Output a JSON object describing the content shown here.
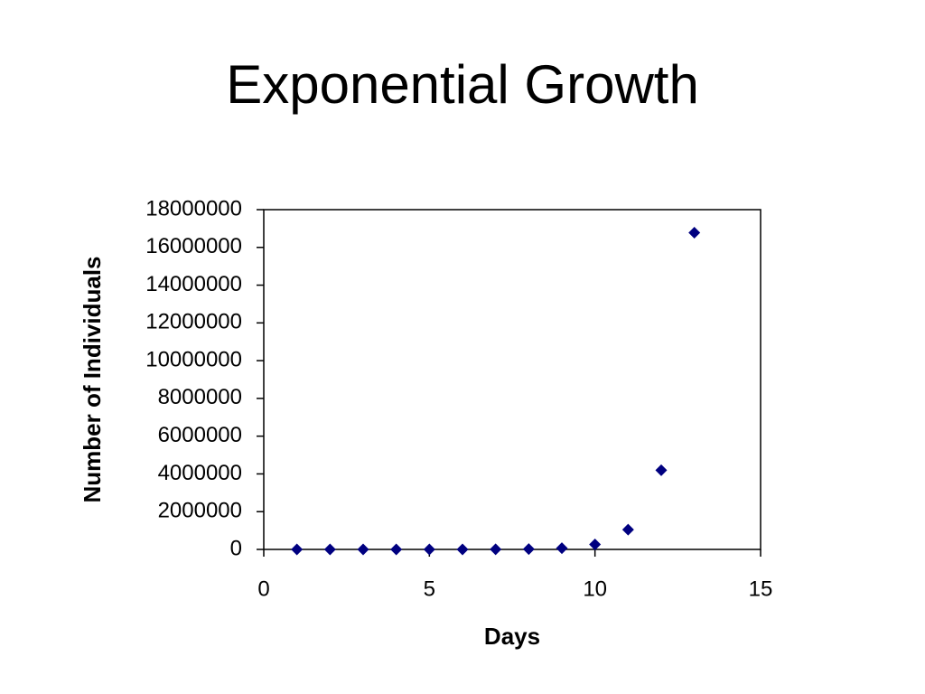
{
  "chart_data": {
    "type": "scatter",
    "title": "Exponential Growth",
    "x_label": "Days",
    "y_label": "Number of Individuals",
    "x": [
      1,
      2,
      3,
      4,
      5,
      6,
      7,
      8,
      9,
      10,
      11,
      12,
      13
    ],
    "values": [
      1,
      4,
      16,
      64,
      256,
      1024,
      4096,
      16384,
      65536,
      262144,
      1048576,
      4194304,
      16777216
    ],
    "color": "#000080",
    "xlim": [
      0,
      15
    ],
    "xticks": [
      0,
      5,
      10,
      15
    ],
    "ylim": [
      0,
      18000000
    ],
    "yticks": [
      0,
      2000000,
      4000000,
      6000000,
      8000000,
      10000000,
      12000000,
      14000000,
      16000000,
      18000000
    ],
    "grid": false
  }
}
